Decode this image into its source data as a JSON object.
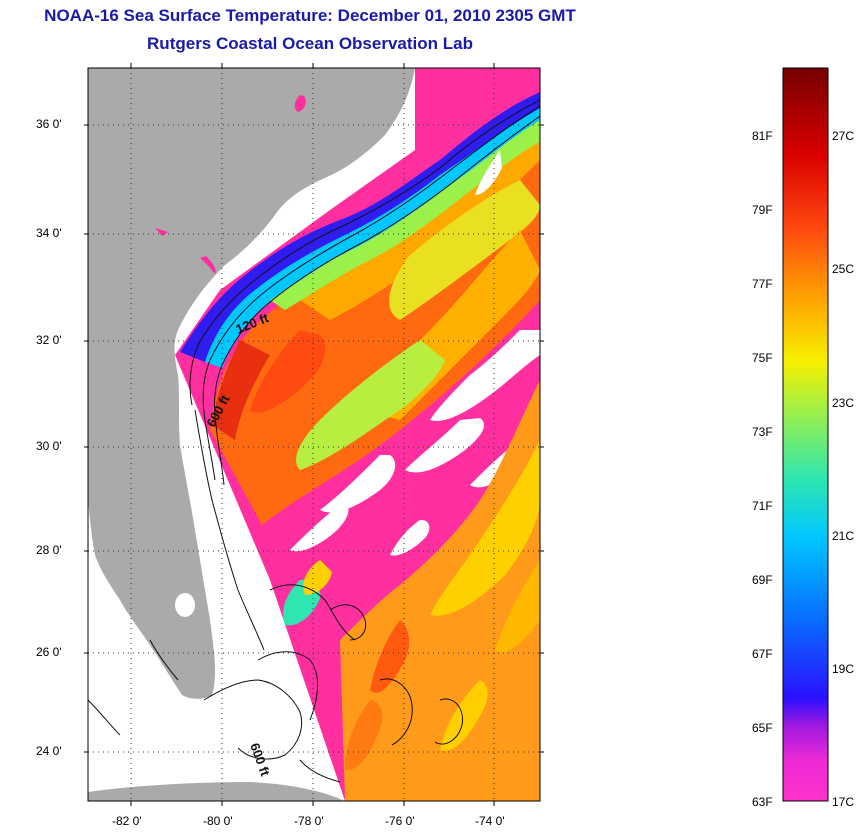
{
  "title": "NOAA-16 Sea Surface Temperature:  December 01, 2010 2305 GMT",
  "subtitle": "Rutgers Coastal Ocean Observation Lab",
  "map": {
    "lat_labels": [
      "36 0'",
      "34 0'",
      "32 0'",
      "30 0'",
      "28 0'",
      "26 0'",
      "24 0'"
    ],
    "lon_labels": [
      "-82 0'",
      "-80 0'",
      "-78 0'",
      "-76 0'",
      "-74 0'"
    ],
    "isobath_labels": [
      "120 ft",
      "600 ft",
      "600 ft"
    ],
    "colors": {
      "land": "#aaaaaa",
      "no_data": "#ffffff",
      "cloud_cold": "#ff2fa0"
    }
  },
  "colorbar": {
    "fahrenheit_labels": [
      "81F",
      "79F",
      "77F",
      "75F",
      "73F",
      "71F",
      "69F",
      "67F",
      "65F",
      "63F"
    ],
    "celsius_labels": [
      "27C",
      "25C",
      "23C",
      "21C",
      "19C",
      "17C"
    ],
    "range_celsius": [
      17,
      28.5
    ],
    "colormap": [
      "#ff33cc",
      "#9a18e0",
      "#2a10ff",
      "#0a66ff",
      "#00c8ff",
      "#2ee6b0",
      "#9cf04a",
      "#f7f000",
      "#ffa800",
      "#ff4a10",
      "#dc0000",
      "#760000"
    ]
  }
}
